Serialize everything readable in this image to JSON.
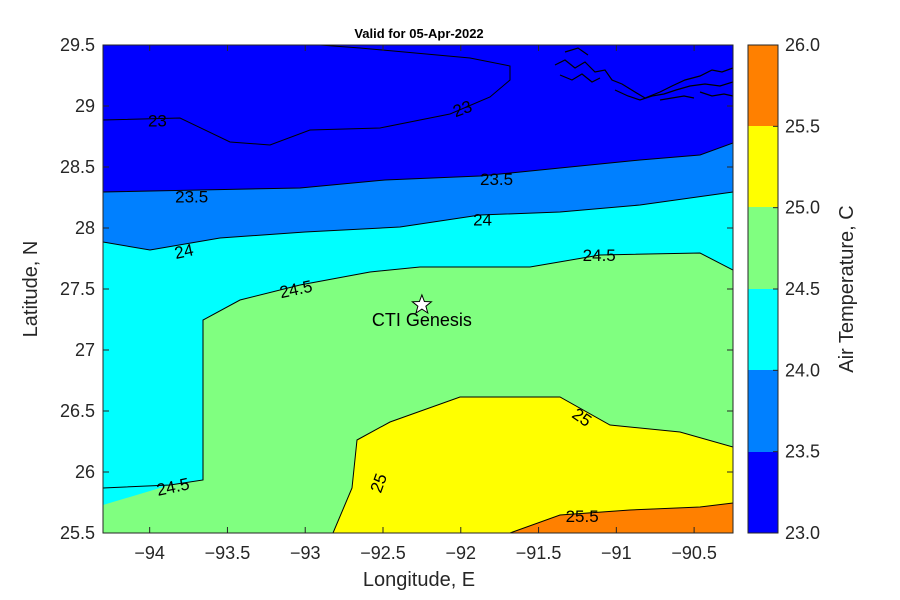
{
  "title": "Valid for 05-Apr-2022",
  "x_axis": {
    "label": "Longitude, E",
    "ticks": [
      "-94",
      "-93.5",
      "-93",
      "-92.5",
      "-92",
      "-91.5",
      "-91",
      "-90.5"
    ]
  },
  "y_axis": {
    "label": "Latitude, N",
    "ticks": [
      "29.5",
      "29",
      "28.5",
      "28",
      "27.5",
      "27",
      "26.5",
      "26",
      "25.5"
    ]
  },
  "colorbar": {
    "label": "Air Temperature, C",
    "ticks": [
      "26.0",
      "25.5",
      "25.0",
      "24.5",
      "24.0",
      "23.5",
      "23.0"
    ]
  },
  "marker": {
    "label": "CTI Genesis",
    "lon": -92.25,
    "lat": 27.37
  },
  "contour_labels": [
    {
      "text": "23",
      "lon": -93.95,
      "lat": 28.88,
      "rot": 0
    },
    {
      "text": "23",
      "lon": -91.99,
      "lat": 28.98,
      "rot": -20
    },
    {
      "text": "23.5",
      "lon": -93.73,
      "lat": 28.26,
      "rot": 0
    },
    {
      "text": "23.5",
      "lon": -91.77,
      "lat": 28.4,
      "rot": 0
    },
    {
      "text": "24",
      "lon": -93.78,
      "lat": 27.81,
      "rot": -12
    },
    {
      "text": "24",
      "lon": -91.86,
      "lat": 28.07,
      "rot": 0
    },
    {
      "text": "24.5",
      "lon": -93.06,
      "lat": 27.5,
      "rot": -12
    },
    {
      "text": "24.5",
      "lon": -91.11,
      "lat": 27.78,
      "rot": 0
    },
    {
      "text": "24.5",
      "lon": -93.85,
      "lat": 25.88,
      "rot": -12
    },
    {
      "text": "25",
      "lon": -92.53,
      "lat": 25.91,
      "rot": -70
    },
    {
      "text": "25",
      "lon": -91.22,
      "lat": 26.45,
      "rot": 35
    },
    {
      "text": "25.5",
      "lon": -91.22,
      "lat": 25.64,
      "rot": 0
    }
  ],
  "colors": {
    "band_23_23_5": "#0000ff",
    "band_23_5_24": "#0080ff",
    "band_24_24_5": "#00ffff",
    "band_24_5_25": "#80ff80",
    "band_25_25_5": "#ffff00",
    "band_25_5_26": "#ff8000"
  },
  "chart_data": {
    "type": "contourf",
    "title": "Valid for 05-Apr-2022",
    "xlabel": "Longitude, E",
    "ylabel": "Latitude, N",
    "xlim": [
      -94.3,
      -90.25
    ],
    "ylim": [
      25.5,
      29.5
    ],
    "colorbar_label": "Air Temperature, C",
    "colorbar_levels": [
      23.0,
      23.5,
      24.0,
      24.5,
      25.0,
      25.5,
      26.0
    ],
    "contour_levels": [
      23,
      23.5,
      24,
      24.5,
      25,
      25.5
    ]
  }
}
